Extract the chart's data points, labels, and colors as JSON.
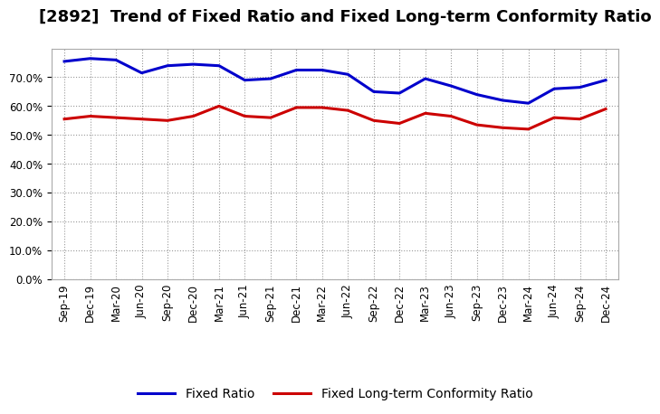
{
  "title": "[2892]  Trend of Fixed Ratio and Fixed Long-term Conformity Ratio",
  "x_labels": [
    "Sep-19",
    "Dec-19",
    "Mar-20",
    "Jun-20",
    "Sep-20",
    "Dec-20",
    "Mar-21",
    "Jun-21",
    "Sep-21",
    "Dec-21",
    "Mar-22",
    "Jun-22",
    "Sep-22",
    "Dec-22",
    "Mar-23",
    "Jun-23",
    "Sep-23",
    "Dec-23",
    "Mar-24",
    "Jun-24",
    "Sep-24",
    "Dec-24"
  ],
  "fixed_ratio": [
    75.5,
    76.5,
    76.0,
    71.5,
    74.0,
    74.5,
    74.0,
    69.0,
    69.5,
    72.5,
    72.5,
    71.0,
    65.0,
    64.5,
    69.5,
    67.0,
    64.0,
    62.0,
    61.0,
    66.0,
    66.5,
    69.0
  ],
  "fixed_lt_ratio": [
    55.5,
    56.5,
    56.0,
    55.5,
    55.0,
    56.5,
    60.0,
    56.5,
    56.0,
    59.5,
    59.5,
    58.5,
    55.0,
    54.0,
    57.5,
    56.5,
    53.5,
    52.5,
    52.0,
    56.0,
    55.5,
    59.0
  ],
  "fixed_ratio_color": "#0000cc",
  "fixed_lt_ratio_color": "#cc0000",
  "line_width": 2.2,
  "ylim": [
    0.0,
    80.0
  ],
  "yticks": [
    0.0,
    10.0,
    20.0,
    30.0,
    40.0,
    50.0,
    60.0,
    70.0
  ],
  "background_color": "#ffffff",
  "grid_color": "#999999",
  "title_fontsize": 13,
  "tick_fontsize": 8.5,
  "legend_fontsize": 10
}
